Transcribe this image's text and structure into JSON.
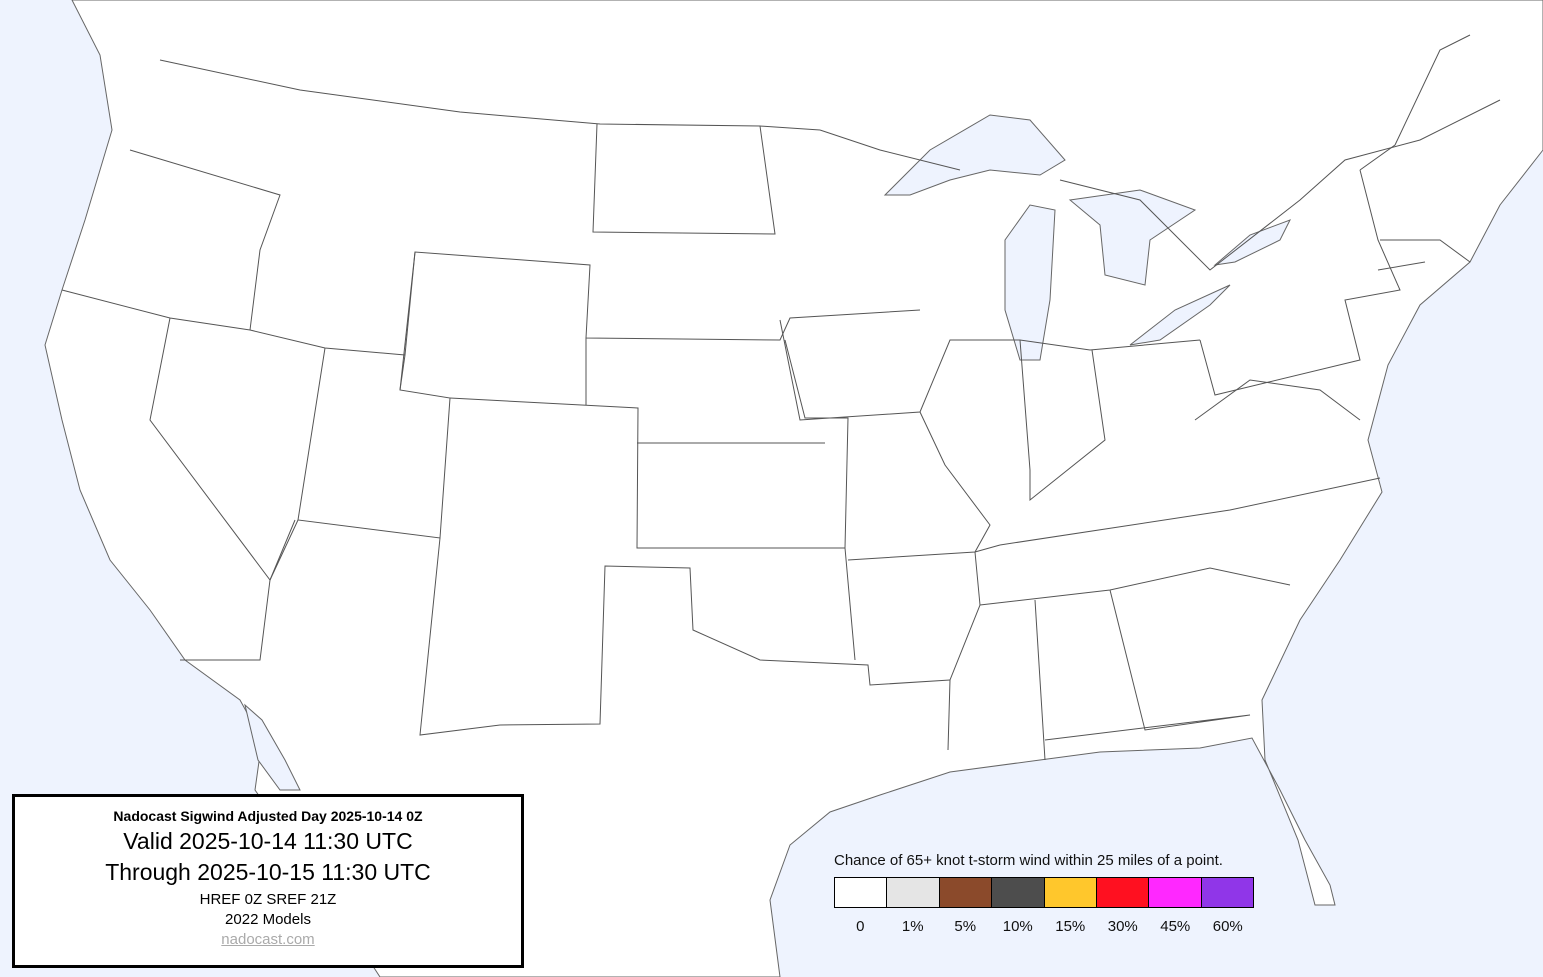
{
  "info_box": {
    "title": "Nadocast Sigwind Adjusted Day 2025-10-14 0Z",
    "valid": "Valid 2025-10-14 11:30 UTC",
    "through": "Through 2025-10-15 11:30 UTC",
    "models_run": "HREF 0Z SREF 21Z",
    "models_version": "2022 Models",
    "link": "nadocast.com"
  },
  "legend": {
    "caption": "Chance of 65+ knot t-storm wind within 25 miles of a point.",
    "bins": [
      {
        "label": "0",
        "color": "#ffffff"
      },
      {
        "label": "1%",
        "color": "#e5e5e5"
      },
      {
        "label": "5%",
        "color": "#8b4a2b"
      },
      {
        "label": "10%",
        "color": "#4d4d4d"
      },
      {
        "label": "15%",
        "color": "#ffc72c"
      },
      {
        "label": "30%",
        "color": "#ff1020"
      },
      {
        "label": "45%",
        "color": "#ff28ff"
      },
      {
        "label": "60%",
        "color": "#9036e8"
      }
    ]
  },
  "colors": {
    "water": "#eef3fe",
    "land": "#ffffff",
    "borders": "#555555"
  }
}
